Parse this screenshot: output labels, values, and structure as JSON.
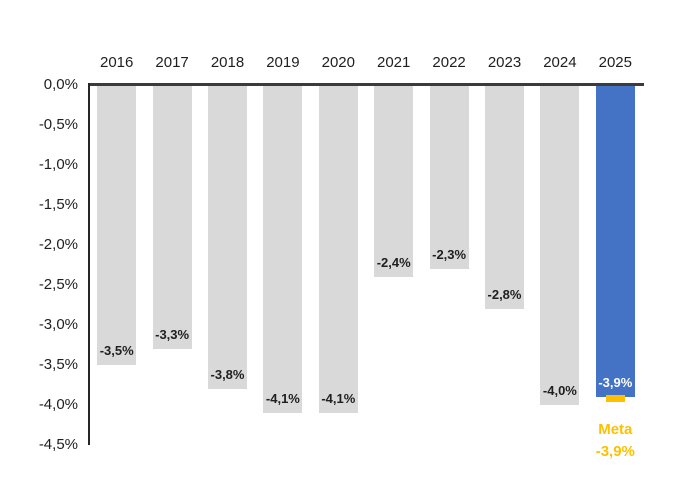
{
  "chart_data": {
    "type": "bar",
    "title": "",
    "xlabel": "",
    "ylabel": "",
    "categories": [
      "2016",
      "2017",
      "2018",
      "2019",
      "2020",
      "2021",
      "2022",
      "2023",
      "2024",
      "2025"
    ],
    "values": [
      -3.5,
      -3.3,
      -3.8,
      -4.1,
      -4.1,
      -2.4,
      -2.3,
      -2.8,
      -4.0,
      -3.9
    ],
    "bar_labels": [
      "-3,5%",
      "-3,3%",
      "-3,8%",
      "-4,1%",
      "-4,1%",
      "-2,4%",
      "-2,3%",
      "-2,8%",
      "-4,0%",
      "-3,9%"
    ],
    "y_tick_labels": [
      "0,0%",
      "-0,5%",
      "-1,0%",
      "-1,5%",
      "-2,0%",
      "-2,5%",
      "-3,0%",
      "-3,5%",
      "-4,0%",
      "-4,5%"
    ],
    "y_tick_values": [
      0,
      -0.5,
      -1.0,
      -1.5,
      -2.0,
      -2.5,
      -3.0,
      -3.5,
      -4.0,
      -4.5
    ],
    "ylim": [
      -4.5,
      0
    ],
    "grid": false,
    "legend": false,
    "category_axis_position": "top",
    "colors": {
      "bar_default": "#d9d9d9",
      "bar_highlight": "#4472c4",
      "label_default": "#1f1f1f",
      "label_highlight": "#ffffff",
      "target": "#ffc000",
      "axis_line": "#3b3b3b",
      "tick_text": "#1f1f1f"
    },
    "highlight_index": 9,
    "target": {
      "index": 9,
      "value": -3.9,
      "label_title": "Meta",
      "label_value": "-3,9%"
    }
  }
}
